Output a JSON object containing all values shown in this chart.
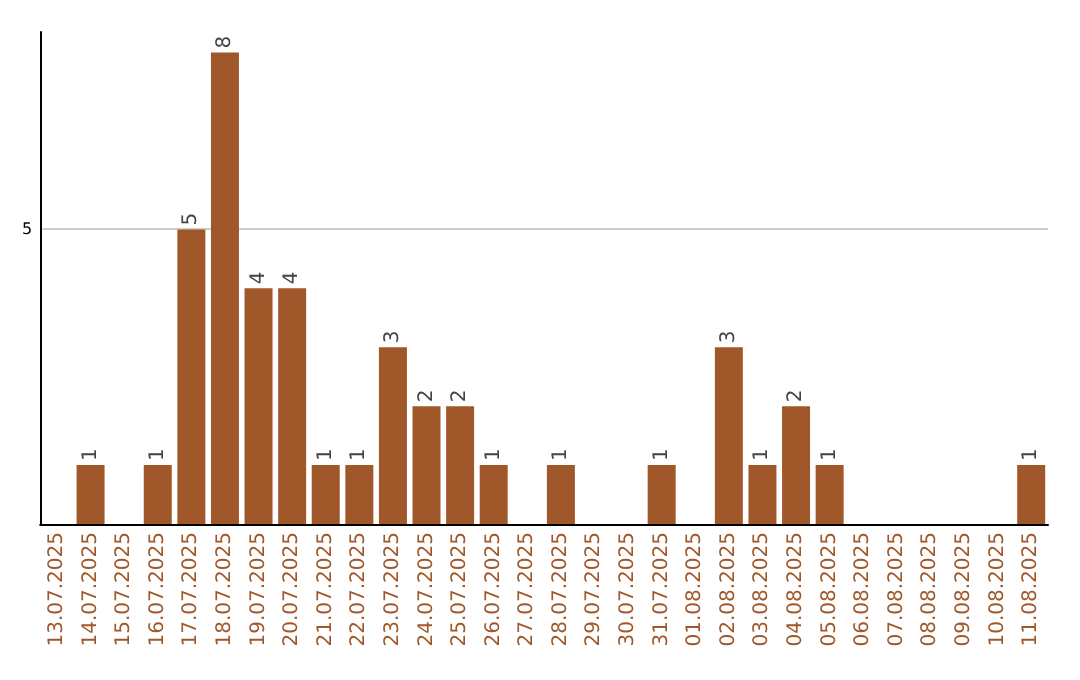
{
  "chart_data": {
    "type": "bar",
    "categories": [
      "13.07.2025",
      "14.07.2025",
      "15.07.2025",
      "16.07.2025",
      "17.07.2025",
      "18.07.2025",
      "19.07.2025",
      "20.07.2025",
      "21.07.2025",
      "22.07.2025",
      "23.07.2025",
      "24.07.2025",
      "25.07.2025",
      "26.07.2025",
      "27.07.2025",
      "28.07.2025",
      "29.07.2025",
      "30.07.2025",
      "31.07.2025",
      "01.08.2025",
      "02.08.2025",
      "03.08.2025",
      "04.08.2025",
      "05.08.2025",
      "06.08.2025",
      "07.08.2025",
      "08.08.2025",
      "09.08.2025",
      "10.08.2025",
      "11.08.2025"
    ],
    "values": [
      0,
      1,
      0,
      1,
      5,
      8,
      4,
      4,
      1,
      1,
      3,
      2,
      2,
      1,
      0,
      1,
      0,
      0,
      1,
      0,
      3,
      1,
      2,
      1,
      0,
      0,
      0,
      0,
      0,
      1
    ],
    "value_labels": [
      null,
      "1",
      null,
      "1",
      "5",
      "8",
      "4",
      "4",
      "1",
      "1",
      "3",
      "2",
      "2",
      "1",
      null,
      "1",
      null,
      null,
      "1",
      null,
      "3",
      "1",
      "2",
      "1",
      null,
      null,
      null,
      null,
      null,
      "1"
    ],
    "color": "#a0582a",
    "ylim": [
      0,
      8.35
    ],
    "yticks": [
      5
    ],
    "grid": "y"
  }
}
